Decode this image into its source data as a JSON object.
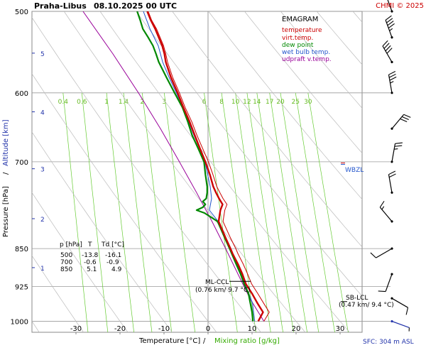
{
  "header": {
    "station": "Praha-Libus",
    "datetime": "08.10.2025 00 UTC",
    "credit": "CHMI © 2025"
  },
  "legend": {
    "title": "EMAGRAM",
    "items": [
      {
        "label": "temperature",
        "color": "#cc0000"
      },
      {
        "label": "virt.temp.",
        "color": "#cc0000"
      },
      {
        "label": "dew point",
        "color": "#008800"
      },
      {
        "label": "wet bulb temp.",
        "color": "#2255cc"
      },
      {
        "label": "udpraft v.temp.",
        "color": "#990099"
      }
    ]
  },
  "axes": {
    "xlabel_left": "Temperature [°C]",
    "xlabel_sep": "/",
    "xlabel_right": "Mixing ratio [g/kg]",
    "ylabel_left": "Pressure [hPa]",
    "ylabel_sep": "/",
    "ylabel_right": "Altitude [km]",
    "sfc_note": "SFC: 304 m ASL"
  },
  "annotations": {
    "wbzl": "WBZL",
    "ml_ccl_1": "ML-CCL",
    "ml_ccl_2": "(0.76 km/ 9.7 °C)",
    "sb_lcl_1": "SB-LCL",
    "sb_lcl_2": "(0.47 km/ 9.4 °C)"
  },
  "level_table": {
    "headers": [
      "p [hPa]",
      "T",
      "Td [°C]"
    ],
    "rows": [
      [
        "500",
        "-13.8",
        "-16.1"
      ],
      [
        "700",
        "-0.6",
        "-0.9"
      ],
      [
        "850",
        "5.1",
        "4.9"
      ]
    ]
  },
  "colors": {
    "temperature": "#cc0000",
    "dewpoint": "#008800",
    "wetbulb": "#2255cc",
    "parcel": "#990099",
    "mixing": "#66cc33",
    "adiabat": "#bbbbbb",
    "altitude": "#2233aa"
  },
  "chart_data": {
    "type": "line",
    "xlim": [
      -40,
      35
    ],
    "ylim_hpa": [
      1025,
      500
    ],
    "y_scale": "log",
    "x_ticks": [
      "-30",
      "-20",
      "-10",
      "0",
      "10",
      "20",
      "30"
    ],
    "x_tick_values": [
      -30,
      -20,
      -10,
      0,
      10,
      20,
      30
    ],
    "p_ticks": [
      "500",
      "600",
      "700",
      "850",
      "925",
      "1000"
    ],
    "p_tick_values": [
      500,
      600,
      700,
      850,
      925,
      1000
    ],
    "altitude_ticks": [
      "1",
      "2",
      "3",
      "4",
      "5"
    ],
    "altitude_tick_hpa": [
      887,
      795,
      711,
      626,
      549
    ],
    "mixing_ratio_labels": [
      "0.4",
      "0.6",
      "1",
      "1.4",
      "2",
      "3",
      "6",
      "8",
      "10",
      "12",
      "14",
      "17",
      "20",
      "25",
      "30"
    ],
    "mixing_ratio_values": [
      0.4,
      0.6,
      1,
      1.4,
      2,
      3,
      6,
      8,
      10,
      12,
      14,
      17,
      20,
      25,
      30
    ],
    "wbzl_hpa": 703,
    "ml_ccl": {
      "p": 919,
      "t": 9.7
    },
    "sb_lcl": {
      "p": 960,
      "t": 9.4
    },
    "series": [
      {
        "name": "temperature",
        "p": [
          1000,
          980,
          960,
          940,
          920,
          900,
          880,
          860,
          850,
          830,
          800,
          780,
          770,
          760,
          750,
          740,
          720,
          700,
          680,
          660,
          640,
          620,
          600,
          580,
          560,
          550,
          540,
          520,
          510,
          500
        ],
        "t": [
          11.4,
          12.5,
          11.2,
          10.0,
          8.6,
          7.8,
          6.8,
          5.6,
          5.1,
          4.0,
          2.4,
          2.8,
          3.3,
          2.5,
          1.8,
          1.2,
          0.4,
          -0.6,
          -1.8,
          -3.0,
          -4.2,
          -5.6,
          -6.9,
          -8.4,
          -9.6,
          -9.9,
          -10.4,
          -12.0,
          -13.0,
          -13.8
        ]
      },
      {
        "name": "virt.temp.",
        "p": [
          1000,
          980,
          960,
          940,
          920,
          900,
          880,
          860,
          850,
          830,
          800,
          780,
          770,
          760,
          750,
          740,
          720,
          700,
          680,
          660,
          640,
          620,
          600,
          580,
          560,
          550,
          540,
          520,
          510,
          500
        ],
        "t": [
          12.7,
          13.9,
          12.6,
          11.3,
          9.9,
          9.0,
          8.0,
          6.8,
          6.3,
          5.1,
          3.4,
          3.8,
          4.3,
          3.4,
          2.7,
          2.0,
          1.1,
          0.1,
          -1.2,
          -2.5,
          -3.7,
          -5.2,
          -6.5,
          -8.0,
          -9.2,
          -9.6,
          -10.1,
          -11.7,
          -12.8,
          -13.6
        ]
      },
      {
        "name": "dew point",
        "p": [
          1000,
          980,
          960,
          940,
          920,
          900,
          880,
          860,
          850,
          830,
          800,
          785,
          780,
          775,
          770,
          765,
          760,
          750,
          740,
          720,
          700,
          680,
          660,
          640,
          620,
          600,
          580,
          560,
          550,
          540,
          530,
          520,
          510,
          500
        ],
        "t": [
          10.2,
          10.0,
          9.6,
          9.2,
          8.2,
          7.4,
          6.4,
          5.4,
          4.9,
          3.8,
          2.2,
          -0.8,
          -2.6,
          -1.2,
          -0.6,
          -1.2,
          -0.4,
          -0.2,
          -0.2,
          -0.6,
          -0.9,
          -2.2,
          -3.6,
          -4.6,
          -5.8,
          -7.6,
          -9.4,
          -11.2,
          -11.8,
          -12.5,
          -13.6,
          -14.8,
          -15.4,
          -16.1
        ]
      },
      {
        "name": "wet bulb temp.",
        "p": [
          1000,
          960,
          920,
          880,
          850,
          800,
          780,
          760,
          740,
          720,
          700,
          680,
          660,
          640,
          620,
          600,
          580,
          560,
          540,
          520,
          500
        ],
        "t": [
          10.6,
          10.1,
          8.4,
          6.6,
          5.0,
          2.3,
          0.3,
          0.8,
          0.5,
          -0.1,
          -0.7,
          -1.9,
          -3.2,
          -4.4,
          -5.7,
          -7.2,
          -8.8,
          -10.3,
          -11.3,
          -13.2,
          -14.7
        ]
      },
      {
        "name": "udpraft v.temp.",
        "p": [
          1000,
          950,
          900,
          850,
          800,
          750,
          700,
          650,
          600,
          550,
          500
        ],
        "t": [
          12.7,
          9.5,
          6.8,
          4.0,
          0.9,
          -2.6,
          -6.5,
          -10.8,
          -15.8,
          -21.6,
          -28.4
        ]
      }
    ],
    "wind_barbs": [
      {
        "p": 1000,
        "dir": 110,
        "spd": 5
      },
      {
        "p": 950,
        "dir": 120,
        "spd": 10
      },
      {
        "p": 900,
        "dir": 200,
        "spd": 10
      },
      {
        "p": 850,
        "dir": 240,
        "spd": 10
      },
      {
        "p": 800,
        "dir": 320,
        "spd": 15
      },
      {
        "p": 750,
        "dir": 350,
        "spd": 20
      },
      {
        "p": 700,
        "dir": 10,
        "spd": 25
      },
      {
        "p": 650,
        "dir": 40,
        "spd": 30
      },
      {
        "p": 600,
        "dir": 350,
        "spd": 35
      },
      {
        "p": 560,
        "dir": 330,
        "spd": 40
      },
      {
        "p": 530,
        "dir": 340,
        "spd": 45
      },
      {
        "p": 500,
        "dir": 340,
        "spd": 50
      }
    ]
  }
}
